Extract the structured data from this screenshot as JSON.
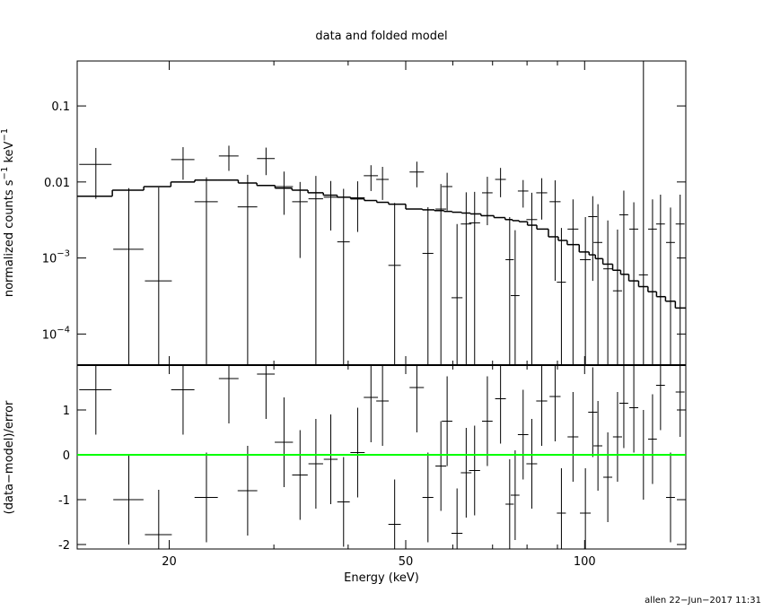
{
  "chart_data": {
    "type": "spectrum",
    "title": "data and folded model",
    "xlabel": "Energy (keV)",
    "ylabel": {
      "text": "normalized counts s",
      "exp1": "−1",
      "text2": " keV",
      "exp2": "−1"
    },
    "residual_ylabel": "(data−model)/error",
    "footer": "allen 22−Jun−2017 11:31",
    "xlog": true,
    "ylog": true,
    "xlim": [
      14,
      148
    ],
    "xticks": [
      20,
      50,
      100
    ],
    "xminorticks": [
      30,
      40,
      60,
      70,
      80,
      90
    ],
    "ylim": [
      3.9e-05,
      0.39
    ],
    "yticks": [
      0.1,
      0.01,
      {
        "value": 0.001,
        "label": "10",
        "exponent": "−3"
      },
      {
        "value": 0.0001,
        "label": "10",
        "exponent": "−4"
      }
    ],
    "residual_ylim": [
      -2.1,
      2
    ],
    "residual_yticks": [
      -2,
      -1,
      0,
      1
    ],
    "residual_zero": 0,
    "data_color": "#000000",
    "model_color": "#000000",
    "zero_line_color": "#00ff00",
    "x": [
      15.05,
      17.1,
      19.2,
      21.1,
      23.1,
      25.2,
      27.1,
      29.1,
      31.2,
      33.2,
      35.3,
      37.4,
      39.3,
      41.5,
      43.7,
      45.7,
      47.9,
      52.2,
      54.5,
      57.3,
      58.7,
      61.0,
      63.2,
      65.3,
      68.6,
      72.2,
      74.8,
      76.4,
      78.8,
      81.5,
      84.7,
      89.2,
      91.4,
      95.6,
      100.3,
      103.2,
      105.3,
      109.4,
      113.6,
      116.4,
      121.0,
      125.6,
      130.1,
      134.2,
      139.5,
      144.8
    ],
    "xerr": [
      0.94,
      1.0,
      1.0,
      0.95,
      1.04,
      0.96,
      1.03,
      1.0,
      1.1,
      1.0,
      1.0,
      1.0,
      0.95,
      1.15,
      1.2,
      1.1,
      1.15,
      1.45,
      1.15,
      1.2,
      1.2,
      1.3,
      1.3,
      1.4,
      1.4,
      1.5,
      1.2,
      1.3,
      1.6,
      1.7,
      1.8,
      1.9,
      1.6,
      2.0,
      2.1,
      1.8,
      1.8,
      1.9,
      2.0,
      2.0,
      2.1,
      2.2,
      2.2,
      2.3,
      2.4,
      2.5
    ],
    "values": [
      0.017,
      0.0013,
      0.0005,
      0.0197,
      0.0055,
      0.022,
      0.0047,
      0.0203,
      0.0087,
      0.0055,
      0.006,
      0.0063,
      0.00163,
      0.0062,
      0.0121,
      0.0108,
      0.0008,
      0.0135,
      0.00115,
      0.0044,
      0.0087,
      0.0003,
      0.0028,
      0.0029,
      0.0072,
      0.0108,
      0.00095,
      0.00032,
      0.0076,
      0.0032,
      0.0072,
      0.0055,
      0.00048,
      0.0024,
      0.00095,
      0.0035,
      0.0016,
      0.00072,
      0.00037,
      0.0037,
      0.0024,
      0.0006,
      0.0024,
      0.0028,
      0.0016,
      0.0028
    ],
    "errors": [
      0.011,
      0.007,
      0.008,
      0.009,
      0.006,
      0.008,
      0.0077,
      0.008,
      0.005,
      0.0045,
      0.006,
      0.004,
      0.0065,
      0.004,
      0.0045,
      0.005,
      0.0045,
      0.005,
      0.0035,
      0.005,
      0.0045,
      0.0025,
      0.0045,
      0.0045,
      0.0045,
      0.0045,
      0.0025,
      0.002,
      0.003,
      0.004,
      0.004,
      0.005,
      0.002,
      0.0035,
      0.0025,
      0.003,
      0.0035,
      0.0024,
      0.002,
      0.004,
      0.003,
      0.5,
      0.0035,
      0.004,
      0.003,
      0.004
    ],
    "model": [
      0.0065,
      0.0078,
      0.0087,
      0.01,
      0.0106,
      0.0106,
      0.0097,
      0.009,
      0.0083,
      0.0078,
      0.0072,
      0.0067,
      0.0063,
      0.006,
      0.0057,
      0.0054,
      0.0051,
      0.0044,
      0.0043,
      0.0042,
      0.0041,
      0.004,
      0.0039,
      0.0038,
      0.0036,
      0.0034,
      0.0032,
      0.0031,
      0.003,
      0.0027,
      0.0024,
      0.0019,
      0.0017,
      0.0015,
      0.0012,
      0.0011,
      0.00098,
      0.00083,
      0.00069,
      0.00061,
      0.0005,
      0.00042,
      0.00036,
      0.00031,
      0.00027,
      0.00022
    ],
    "residuals": [
      1.45,
      -1.0,
      -1.78,
      1.45,
      -0.95,
      1.7,
      -0.8,
      1.8,
      0.28,
      -0.45,
      -0.2,
      -0.1,
      -1.05,
      0.05,
      1.28,
      1.2,
      -1.55,
      1.5,
      -0.95,
      -0.25,
      0.75,
      -1.75,
      -0.4,
      -0.35,
      0.75,
      1.25,
      -1.1,
      -0.9,
      0.45,
      -0.2,
      1.2,
      1.3,
      -1.3,
      0.4,
      -1.3,
      0.95,
      0.2,
      -0.5,
      0.4,
      1.15,
      1.05,
      0.0,
      0.35,
      1.55,
      -0.95,
      1.4
    ],
    "residual_errors": [
      1,
      1,
      1,
      1,
      1,
      1,
      1,
      1,
      1,
      1,
      1,
      1,
      1,
      1,
      1,
      1,
      1,
      1,
      1,
      1,
      1,
      1,
      1,
      1,
      1,
      1,
      1,
      1,
      1,
      1,
      1,
      1,
      1,
      1,
      1,
      1,
      1,
      1,
      1,
      1,
      1,
      1,
      1,
      1,
      1,
      1
    ]
  }
}
